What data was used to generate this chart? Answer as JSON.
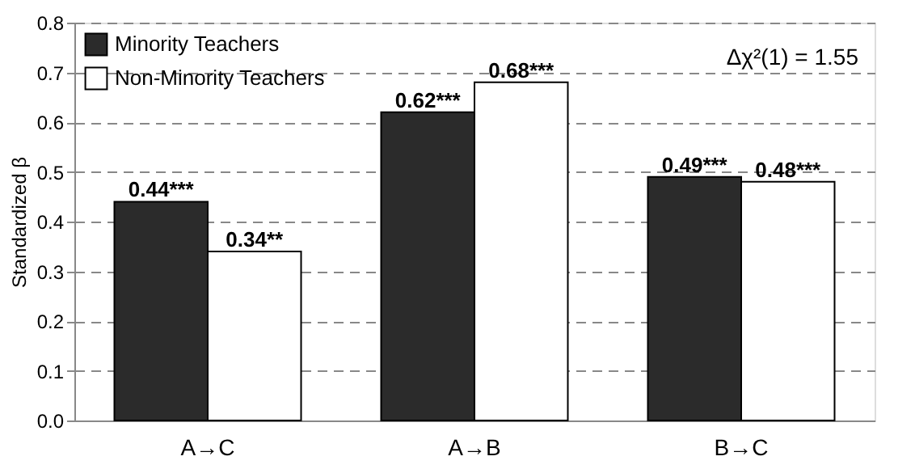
{
  "chart_data": {
    "type": "bar",
    "ylabel": "Standardized β",
    "categories": [
      "A→C",
      "A→B",
      "B→C"
    ],
    "series": [
      {
        "name": "Minority Teachers",
        "color": "#2b2b2b",
        "values": [
          0.44,
          0.62,
          0.49
        ],
        "value_labels": [
          "0.44***",
          "0.62***",
          "0.49***"
        ]
      },
      {
        "name": "Non-Minority Teachers",
        "color": "#ffffff",
        "values": [
          0.34,
          0.68,
          0.48
        ],
        "value_labels": [
          "0.34**",
          "0.68***",
          "0.48***"
        ]
      }
    ],
    "ylim": [
      0,
      0.8
    ],
    "yticks": [
      {
        "value": 0,
        "label": "0.0"
      },
      0.1,
      0.2,
      0.3,
      0.4,
      0.5,
      0.6,
      0.7,
      0.8
    ],
    "grid": "y",
    "legend": "top left",
    "annotations": [
      "Δχ²(1) = 1.55"
    ]
  }
}
